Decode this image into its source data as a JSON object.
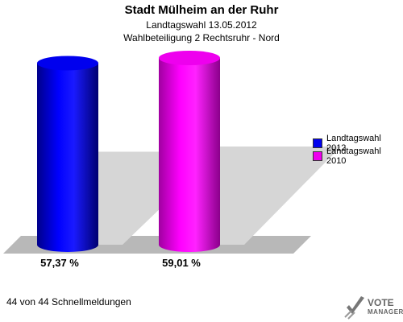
{
  "header": {
    "title": "Stadt Mülheim an der Ruhr",
    "subtitle1": "Landtagswahl 13.05.2012",
    "subtitle2": "Wahlbeteiligung 2 Rechtsruhr - Nord"
  },
  "footer": {
    "text": "44 von 44 Schnellmeldungen"
  },
  "logo": {
    "line1": "VOTE",
    "line2": "MANAGER"
  },
  "legend": [
    {
      "label": "Landtagswahl 2012",
      "color": "#0000ee"
    },
    {
      "label": "Landtagswahl 2010",
      "color": "#ee00ee"
    }
  ],
  "chart_data": {
    "type": "bar",
    "title": "Stadt Mülheim an der Ruhr",
    "categories": [
      "Landtagswahl 2012",
      "Landtagswahl 2010"
    ],
    "values": [
      57.37,
      59.01
    ],
    "value_labels": [
      "57,37 %",
      "59,01 %"
    ],
    "colors": [
      "#0000ee",
      "#ee00ee"
    ],
    "ylim": [
      0,
      70
    ],
    "grid": false,
    "legend_position": "right"
  }
}
